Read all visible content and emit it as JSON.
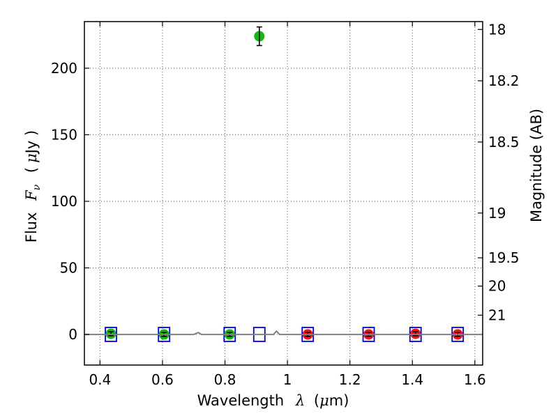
{
  "chart_data": {
    "type": "scatter",
    "title": "",
    "xlabel": {
      "text": "Wavelength",
      "symbol": "λ",
      "unit_open": "(",
      "unit_symbol": "μ",
      "unit_text": "m)"
    },
    "ylabel": {
      "text": "Flux",
      "symbol": "F",
      "subscript": "ν",
      "unit_open": "(",
      "unit_symbol": "μ",
      "unit_text": "Jy )"
    },
    "y2label": "Magnitude (AB)",
    "xlim": [
      0.35,
      1.625
    ],
    "ylim": [
      -23,
      235
    ],
    "xticks": [
      {
        "value": 0.4,
        "label": "0.4"
      },
      {
        "value": 0.6,
        "label": "0.6"
      },
      {
        "value": 0.8,
        "label": "0.8"
      },
      {
        "value": 1.0,
        "label": "1"
      },
      {
        "value": 1.2,
        "label": "1.2"
      },
      {
        "value": 1.4,
        "label": "1.4"
      },
      {
        "value": 1.6,
        "label": "1.6"
      }
    ],
    "yticks": [
      {
        "value": 0,
        "label": "0"
      },
      {
        "value": 50,
        "label": "50"
      },
      {
        "value": 100,
        "label": "100"
      },
      {
        "value": 150,
        "label": "150"
      },
      {
        "value": 200,
        "label": "200"
      }
    ],
    "y2ticks": [
      {
        "value": 18,
        "label": "18"
      },
      {
        "value": 18.2,
        "label": "18.2"
      },
      {
        "value": 18.5,
        "label": "18.5"
      },
      {
        "value": 19,
        "label": "19"
      },
      {
        "value": 19.5,
        "label": "19.5"
      },
      {
        "value": 20,
        "label": "20"
      },
      {
        "value": 21,
        "label": "21"
      }
    ],
    "grid": true,
    "series": [
      {
        "marker": "circle",
        "color": "#11bb11",
        "points": [
          {
            "x": 0.435,
            "y": 0.5,
            "err": 1.5
          },
          {
            "x": 0.605,
            "y": 0.0,
            "err": 1.5
          },
          {
            "x": 0.815,
            "y": 0.0,
            "err": 1.5
          },
          {
            "x": 0.91,
            "y": 224,
            "err": 7
          }
        ]
      },
      {
        "marker": "circle",
        "color": "#ff1111",
        "points": [
          {
            "x": 1.065,
            "y": 0.0,
            "err": 1.5
          },
          {
            "x": 1.26,
            "y": 0.0,
            "err": 1.5
          },
          {
            "x": 1.41,
            "y": 0.5,
            "err": 1.5
          },
          {
            "x": 1.545,
            "y": 0.0,
            "err": 1.5
          }
        ]
      },
      {
        "marker": "square-open",
        "color": "#0000ee",
        "points": [
          {
            "x": 0.435,
            "y": 0.0
          },
          {
            "x": 0.605,
            "y": 0.0
          },
          {
            "x": 0.815,
            "y": 0.0
          },
          {
            "x": 0.91,
            "y": 0.0
          },
          {
            "x": 1.065,
            "y": 0.0
          },
          {
            "x": 1.26,
            "y": 0.0
          },
          {
            "x": 1.41,
            "y": 0.0
          },
          {
            "x": 1.545,
            "y": 0.0
          }
        ]
      },
      {
        "marker": "line",
        "color": "#808080",
        "points": [
          {
            "x": 0.35,
            "y": 0.0
          },
          {
            "x": 0.7,
            "y": 0.0
          },
          {
            "x": 0.715,
            "y": 1.5
          },
          {
            "x": 0.725,
            "y": 0.0
          },
          {
            "x": 0.955,
            "y": 0.0
          },
          {
            "x": 0.965,
            "y": 2.5
          },
          {
            "x": 0.975,
            "y": 0.0
          },
          {
            "x": 1.625,
            "y": 0.0
          }
        ]
      }
    ]
  }
}
